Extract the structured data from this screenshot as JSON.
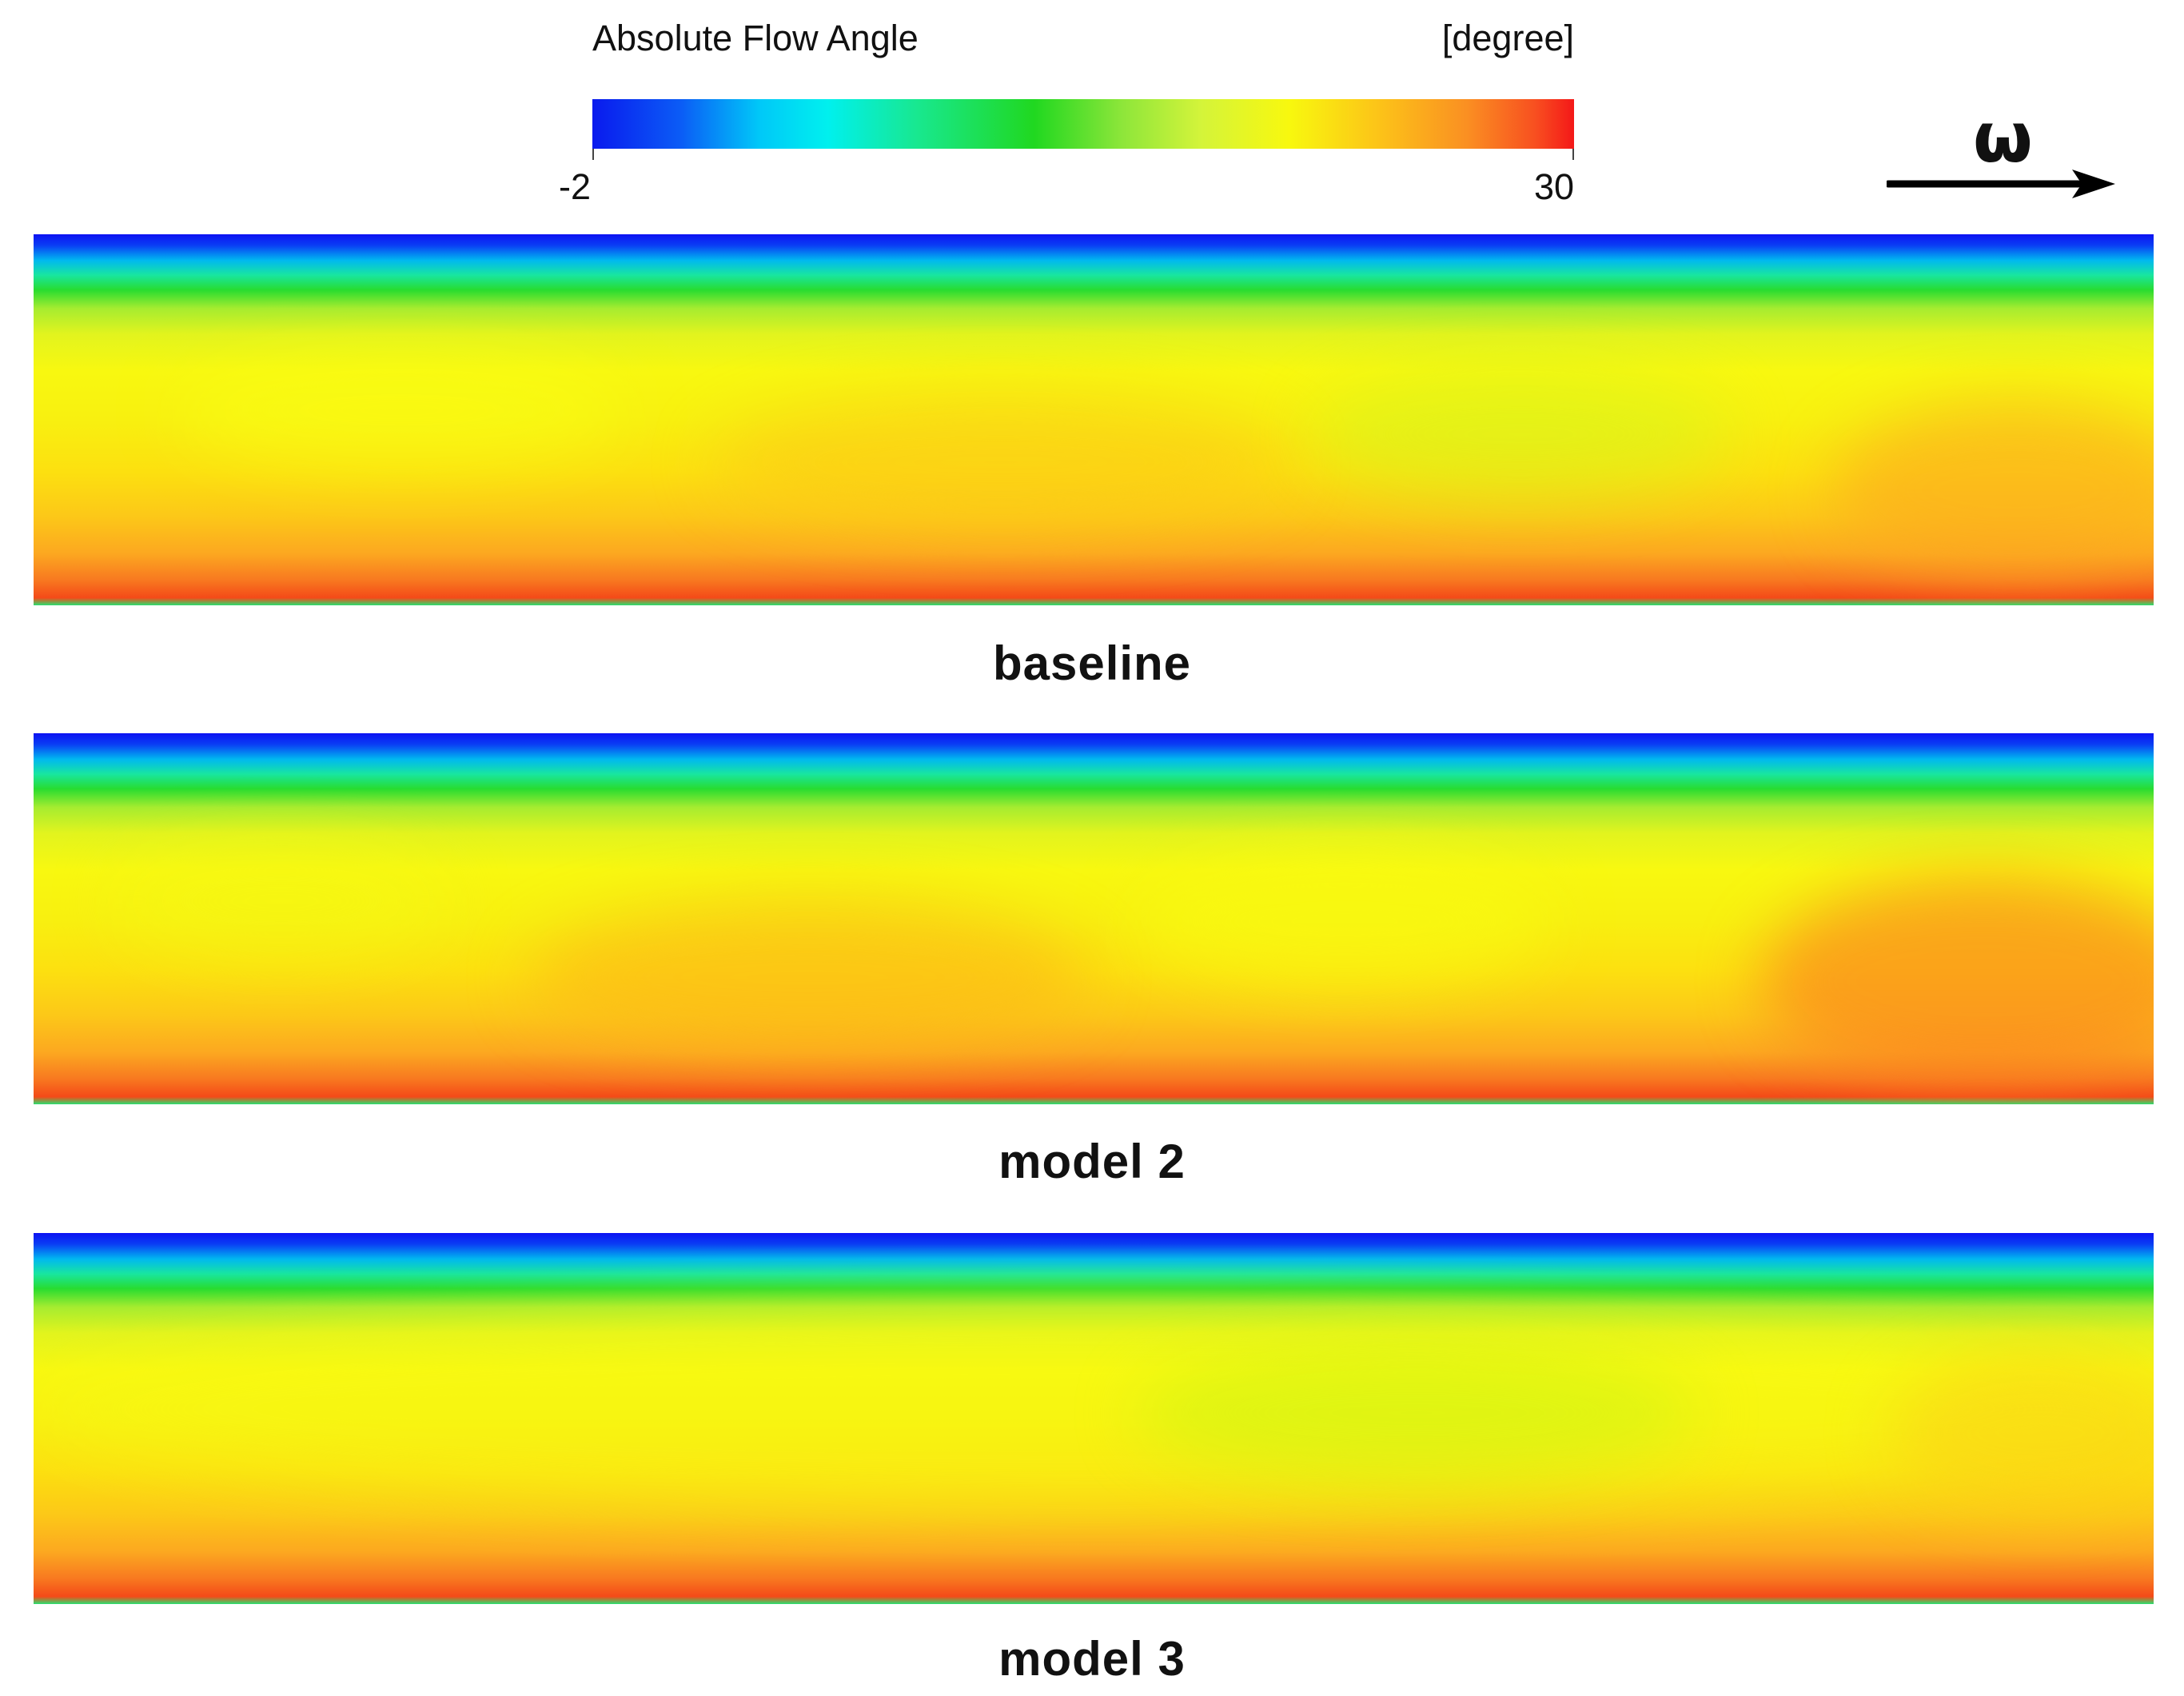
{
  "legend": {
    "title": "Absolute Flow Angle",
    "unit": "[degree]",
    "min_label": "-2",
    "max_label": "30",
    "min": -2,
    "max": 30,
    "colormap": [
      "#0a1aee",
      "#00f0ee",
      "#20d820",
      "#f8f80e",
      "#f41818"
    ]
  },
  "rotation": {
    "symbol": "ω",
    "icon": "arrow-right-icon"
  },
  "panels": [
    {
      "caption": "baseline"
    },
    {
      "caption": "model  2"
    },
    {
      "caption": "model  3"
    }
  ]
}
